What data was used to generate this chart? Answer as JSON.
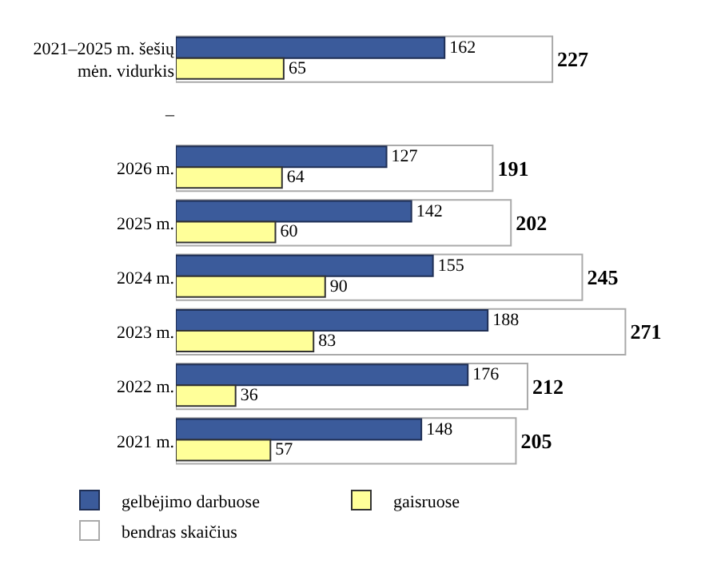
{
  "chart_data": {
    "type": "bar",
    "orientation": "horizontal",
    "categories": [
      "2021–2025 m. šešių\nmėn. vidurkis",
      "–",
      "2026 m.",
      "2025 m.",
      "2024 m.",
      "2023 m.",
      "2022 m.",
      "2021 m."
    ],
    "series": [
      {
        "name": "bendras skaičius",
        "color": "#ffffff",
        "values": [
          227,
          null,
          191,
          202,
          245,
          271,
          212,
          205
        ]
      },
      {
        "name": "gelbėjimo darbuose",
        "color": "#3b5b9b",
        "values": [
          162,
          null,
          127,
          142,
          155,
          188,
          176,
          148
        ]
      },
      {
        "name": "gaisruose",
        "color": "#ffff99",
        "values": [
          65,
          null,
          64,
          60,
          90,
          83,
          36,
          57
        ]
      }
    ],
    "data_labels": true,
    "legend": "bottom"
  }
}
